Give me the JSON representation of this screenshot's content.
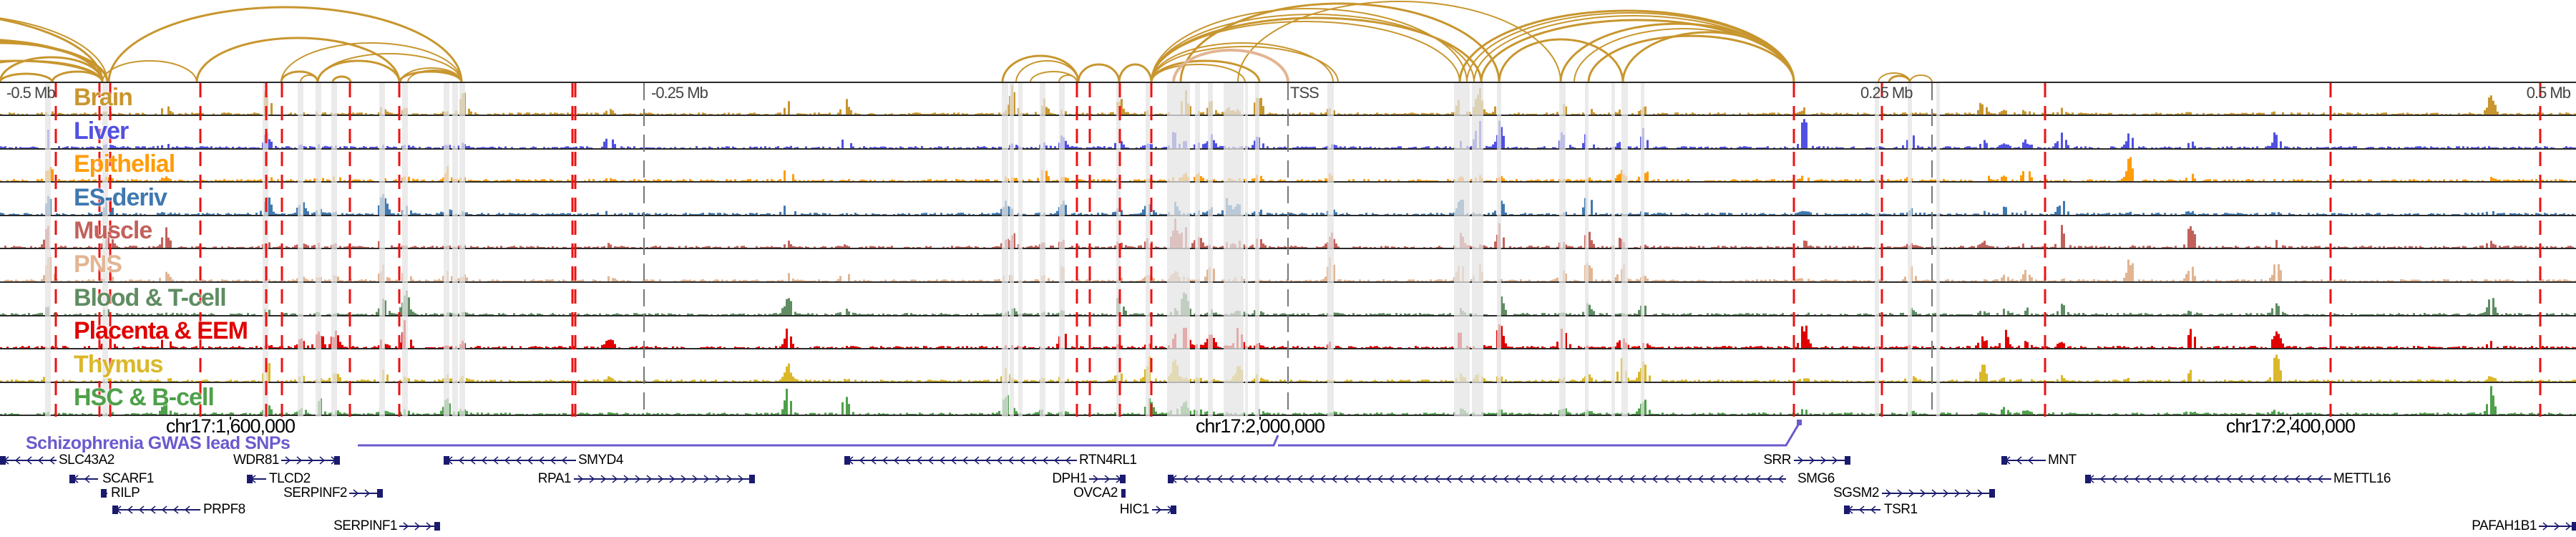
{
  "tracks": [
    {
      "label": "Brain",
      "color": "#c8962e"
    },
    {
      "label": "Liver",
      "color": "#5050e3"
    },
    {
      "label": "Epithelial",
      "color": "#ff9c0a"
    },
    {
      "label": "ES-deriv",
      "color": "#3f78b0"
    },
    {
      "label": "Muscle",
      "color": "#c2615b"
    },
    {
      "label": "PNS",
      "color": "#e2b592"
    },
    {
      "label": "Blood & T-cell",
      "color": "#5f8c62"
    },
    {
      "label": "Placenta & EEM",
      "color": "#e00000"
    },
    {
      "label": "Thymus",
      "color": "#dab82a"
    },
    {
      "label": "HSC & B-cell",
      "color": "#4ea04a"
    }
  ],
  "axis": {
    "labels": [
      "-0.5 Mb",
      "-0.25 Mb",
      "TSS",
      "0.25 Mb",
      "0.5 Mb"
    ]
  },
  "coordinates": [
    "chr17:1,600,000",
    "chr17:2,000,000",
    "chr17:2,400,000"
  ],
  "snp_track": {
    "label": "Schizophrenia GWAS lead SNPs",
    "color": "#6a5acd"
  },
  "genes": [
    {
      "name": "SLC43A2",
      "strand": "-"
    },
    {
      "name": "SCARF1",
      "strand": "-"
    },
    {
      "name": "RILP",
      "strand": "-"
    },
    {
      "name": "PRPF8",
      "strand": "-"
    },
    {
      "name": "WDR81",
      "strand": "+"
    },
    {
      "name": "TLCD2",
      "strand": "-"
    },
    {
      "name": "SERPINF2",
      "strand": "+"
    },
    {
      "name": "SERPINF1",
      "strand": "+"
    },
    {
      "name": "SMYD4",
      "strand": "-"
    },
    {
      "name": "RPA1",
      "strand": "+"
    },
    {
      "name": "RTN4RL1",
      "strand": "-"
    },
    {
      "name": "DPH1",
      "strand": "+"
    },
    {
      "name": "OVCA2",
      "strand": "+"
    },
    {
      "name": "HIC1",
      "strand": "+"
    },
    {
      "name": "SRR",
      "strand": "+"
    },
    {
      "name": "SMG6",
      "strand": "-"
    },
    {
      "name": "SGSM2",
      "strand": "+"
    },
    {
      "name": "TSR1",
      "strand": "-"
    },
    {
      "name": "MNT",
      "strand": "-"
    },
    {
      "name": "METTL16",
      "strand": "-"
    },
    {
      "name": "PAFAH1B1",
      "strand": "+"
    }
  ],
  "colors": {
    "arc": "#c8962e",
    "arc_alt": "#e2b592",
    "snp_highlight": "#ee1111",
    "gene": "#1a1a6e",
    "region_highlight": "#e4e4e4"
  }
}
